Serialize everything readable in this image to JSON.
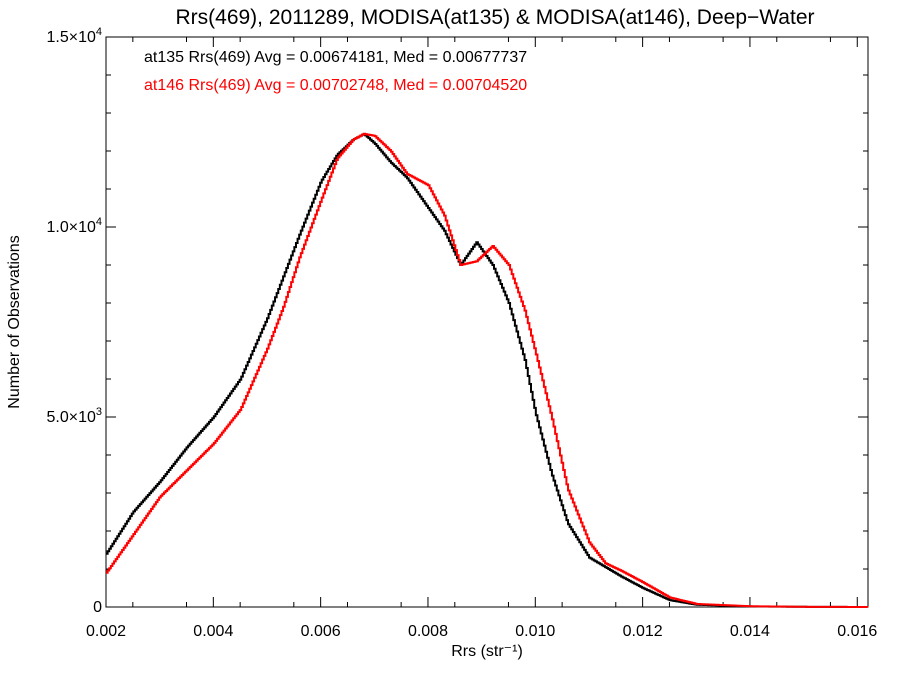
{
  "chart_data": {
    "type": "line",
    "title": "Rrs(469), 2011289, MODISA(at135) & MODISA(at146), Deep−Water",
    "xlabel": "Rrs (str⁻¹)",
    "ylabel": "Number of Observations",
    "xlim": [
      0.002,
      0.0162
    ],
    "ylim": [
      0,
      15000
    ],
    "x_ticks": [
      0.002,
      0.004,
      0.006,
      0.008,
      0.01,
      0.012,
      0.014,
      0.016
    ],
    "x_tick_labels": [
      "0.002",
      "0.004",
      "0.006",
      "0.008",
      "0.010",
      "0.012",
      "0.014",
      "0.016"
    ],
    "y_ticks": [
      {
        "value": 0,
        "mant": "0",
        "exp": ""
      },
      {
        "value": 5000,
        "mant": "5.0×10",
        "exp": "3"
      },
      {
        "value": 10000,
        "mant": "1.0×10",
        "exp": "4"
      },
      {
        "value": 15000,
        "mant": "1.5×10",
        "exp": "4"
      }
    ],
    "grid": false,
    "legend": "top-left",
    "annotations": [
      {
        "text": "at135 Rrs(469) Avg = 0.00674181, Med = 0.00677737",
        "color": "#000000"
      },
      {
        "text": "at146 Rrs(469) Avg = 0.00702748, Med = 0.00704520",
        "color": "#ff0000"
      }
    ],
    "series": [
      {
        "name": "at135",
        "color": "#000000",
        "x": [
          0.002,
          0.0025,
          0.003,
          0.0035,
          0.004,
          0.0045,
          0.005,
          0.0053,
          0.0056,
          0.006,
          0.0063,
          0.0066,
          0.0068,
          0.007,
          0.0073,
          0.0076,
          0.008,
          0.0083,
          0.0086,
          0.0089,
          0.0092,
          0.0095,
          0.0098,
          0.01,
          0.0103,
          0.0106,
          0.011,
          0.0113,
          0.0116,
          0.012,
          0.0125,
          0.013,
          0.014,
          0.015,
          0.0162
        ],
        "y": [
          1400,
          2500,
          3300,
          4200,
          5000,
          6000,
          7600,
          8700,
          9800,
          11200,
          11900,
          12300,
          12450,
          12200,
          11700,
          11300,
          10500,
          9900,
          9000,
          9600,
          9000,
          8000,
          6500,
          5100,
          3500,
          2200,
          1300,
          1050,
          800,
          500,
          180,
          60,
          15,
          5,
          0
        ]
      },
      {
        "name": "at146",
        "color": "#ff0000",
        "x": [
          0.002,
          0.0025,
          0.003,
          0.0035,
          0.004,
          0.0045,
          0.005,
          0.0053,
          0.0056,
          0.006,
          0.0063,
          0.0066,
          0.0068,
          0.007,
          0.0073,
          0.0076,
          0.008,
          0.0083,
          0.0086,
          0.0089,
          0.0092,
          0.0095,
          0.0098,
          0.01,
          0.0103,
          0.0106,
          0.011,
          0.0113,
          0.0116,
          0.012,
          0.0125,
          0.013,
          0.014,
          0.015,
          0.0162
        ],
        "y": [
          900,
          1900,
          2900,
          3600,
          4300,
          5200,
          6800,
          7900,
          9200,
          10700,
          11800,
          12300,
          12450,
          12400,
          12000,
          11400,
          11100,
          10300,
          9000,
          9100,
          9500,
          9000,
          7800,
          6700,
          5000,
          3100,
          1700,
          1150,
          950,
          650,
          250,
          80,
          20,
          5,
          0
        ]
      }
    ]
  }
}
